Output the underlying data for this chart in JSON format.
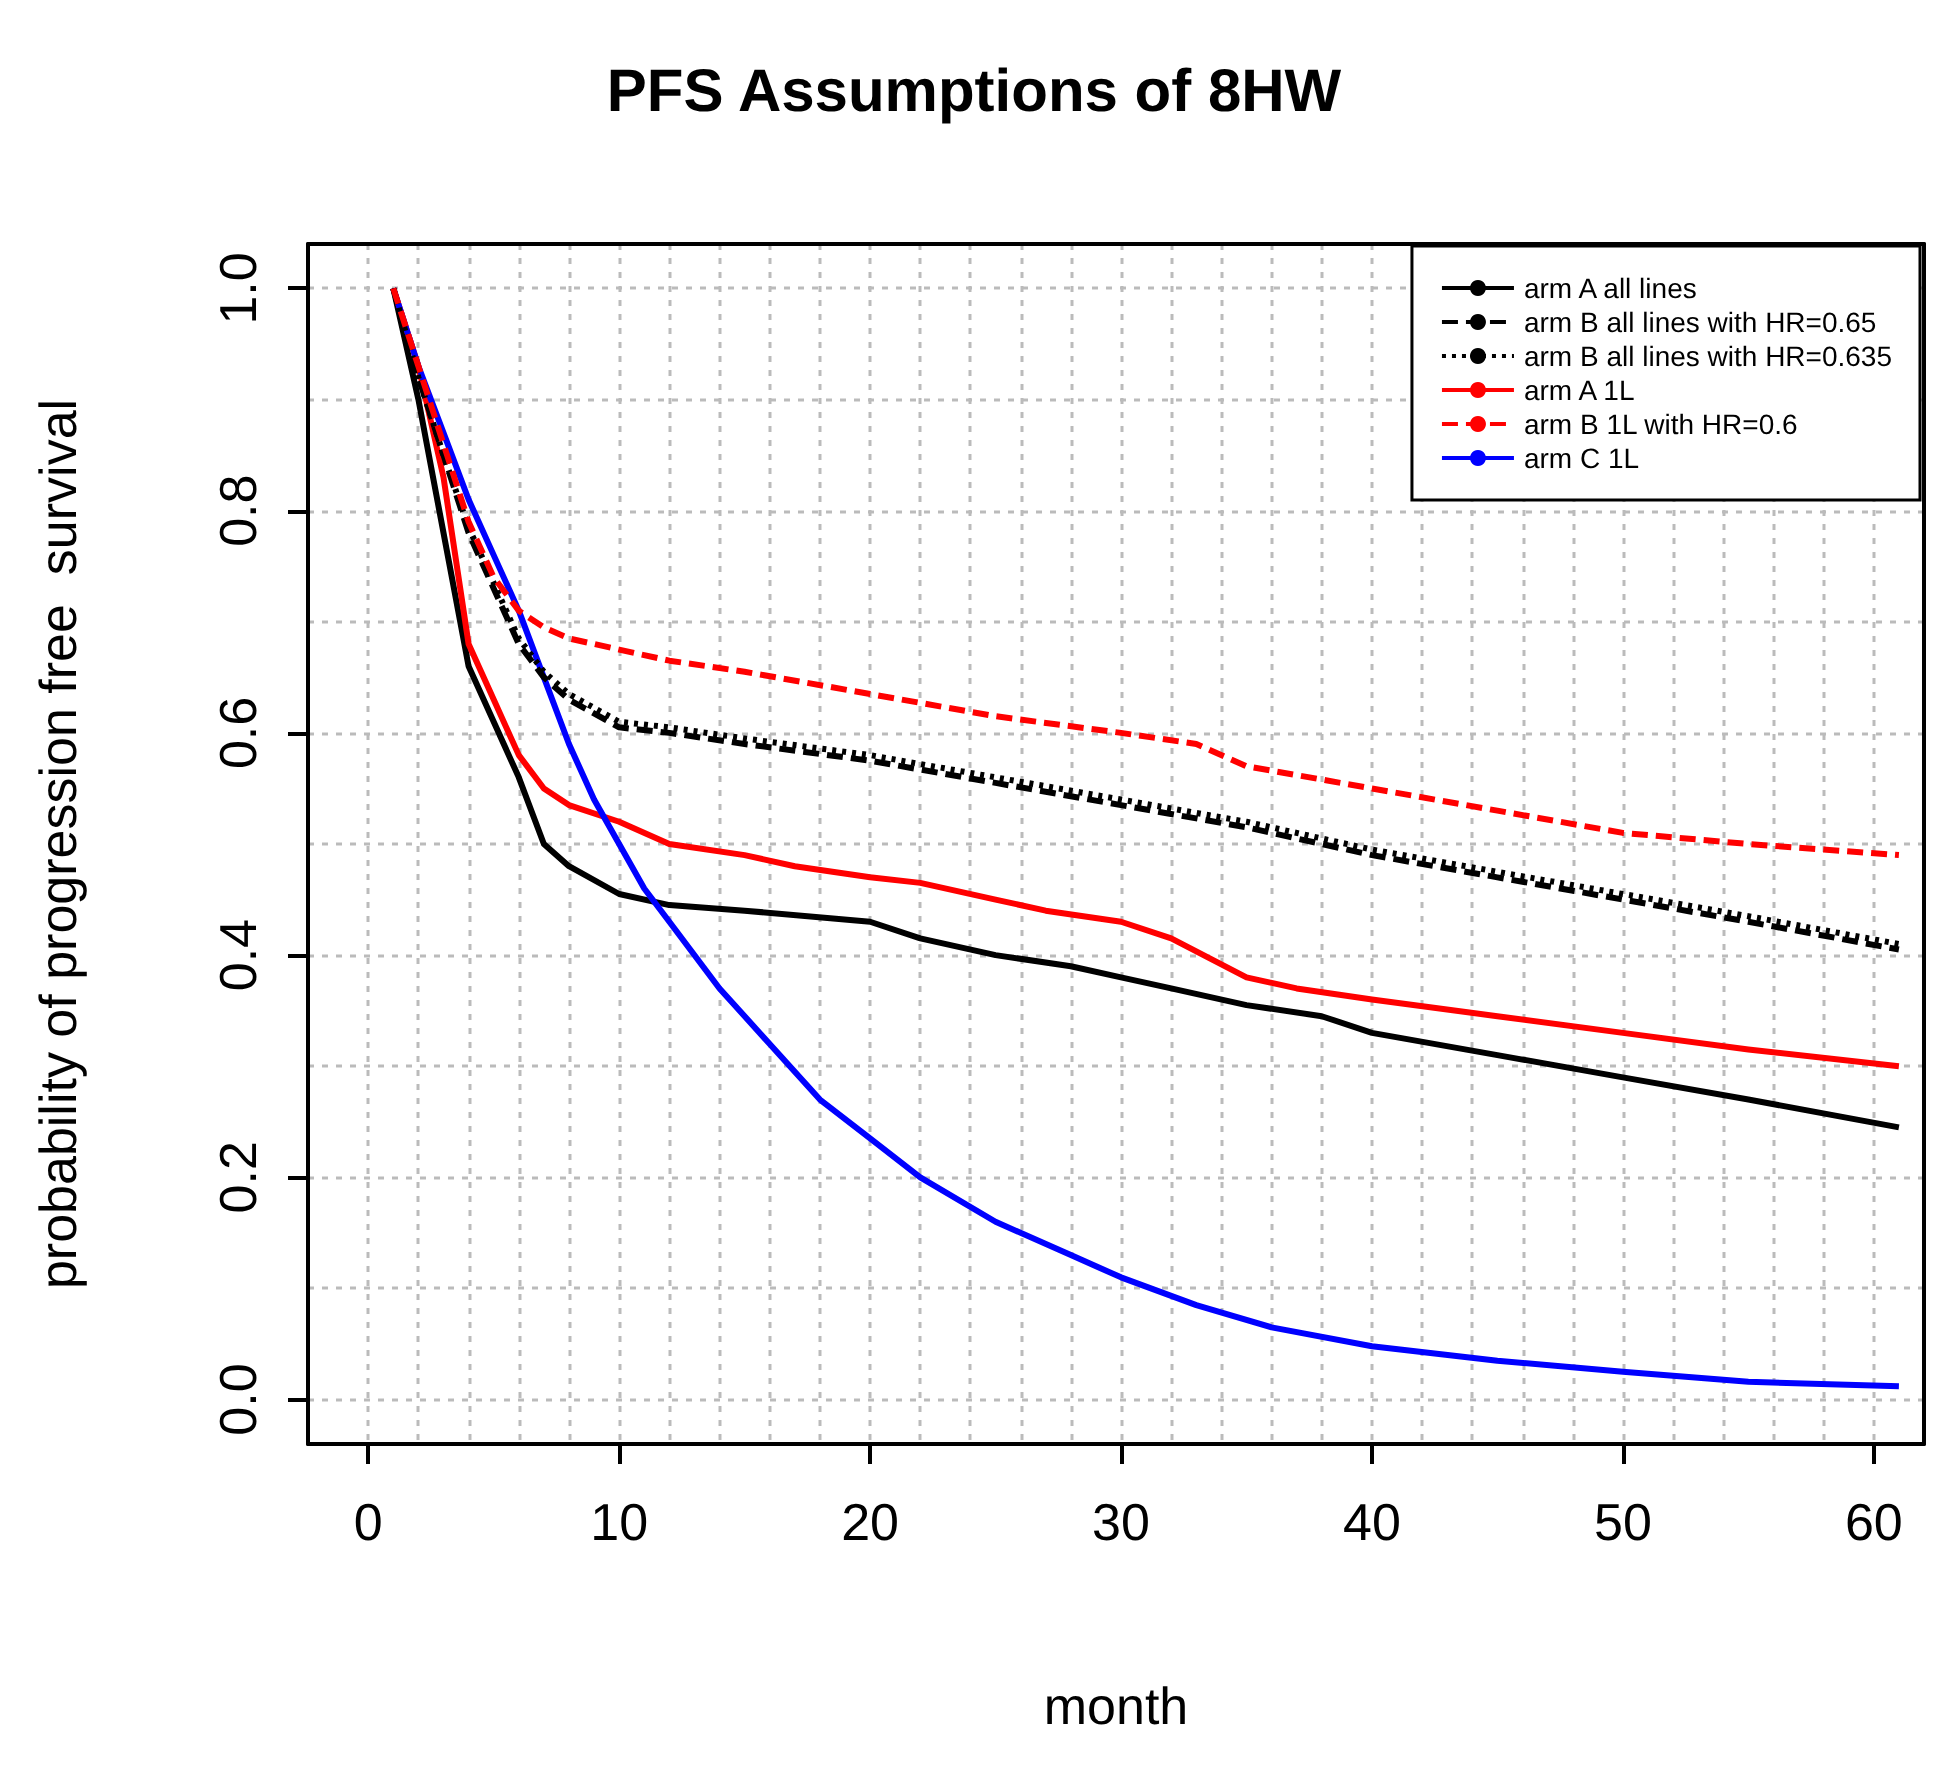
{
  "chart_data": {
    "type": "line",
    "title": "PFS Assumptions of 8HW",
    "xlabel": "month",
    "ylabel": "probability of progression free  survival",
    "xlim": [
      -2.4,
      62
    ],
    "ylim": [
      -0.04,
      1.04
    ],
    "xticks": [
      0,
      {
        "value": 2,
        "label": null
      },
      {
        "value": 4,
        "label": null
      },
      {
        "value": 6,
        "label": null
      },
      {
        "value": 8,
        "label": null
      },
      10,
      {
        "value": 12,
        "label": null
      },
      {
        "value": 14,
        "label": null
      },
      {
        "value": 16,
        "label": null
      },
      {
        "value": 18,
        "label": null
      },
      20,
      {
        "value": 22,
        "label": null
      },
      {
        "value": 24,
        "label": null
      },
      {
        "value": 26,
        "label": null
      },
      {
        "value": 28,
        "label": null
      },
      30,
      {
        "value": 32,
        "label": null
      },
      {
        "value": 34,
        "label": null
      },
      {
        "value": 36,
        "label": null
      },
      {
        "value": 38,
        "label": null
      },
      40,
      {
        "value": 42,
        "label": null
      },
      {
        "value": 44,
        "label": null
      },
      {
        "value": 46,
        "label": null
      },
      {
        "value": 48,
        "label": null
      },
      50,
      {
        "value": 52,
        "label": null
      },
      {
        "value": 54,
        "label": null
      },
      {
        "value": 56,
        "label": null
      },
      {
        "value": 58,
        "label": null
      },
      60
    ],
    "yticks": [
      {
        "value": 0,
        "label": "0.0"
      },
      {
        "value": 0.1,
        "label": null
      },
      {
        "value": 0.2,
        "label": "0.2"
      },
      {
        "value": 0.3,
        "label": null
      },
      {
        "value": 0.4,
        "label": "0.4"
      },
      {
        "value": 0.5,
        "label": null
      },
      {
        "value": 0.6,
        "label": "0.6"
      },
      {
        "value": 0.7,
        "label": null
      },
      {
        "value": 0.8,
        "label": "0.8"
      },
      {
        "value": 0.9,
        "label": null
      },
      {
        "value": 1,
        "label": "1.0"
      }
    ],
    "grid": true,
    "legend": "top right",
    "marker": "none",
    "series": [
      {
        "name": "arm A all lines",
        "color": "#000000",
        "line_style": "solid",
        "x": [
          1,
          2,
          3,
          4,
          5,
          6,
          7,
          8,
          10,
          12,
          15,
          20,
          22,
          25,
          28,
          30,
          32,
          35,
          38,
          40,
          45,
          50,
          55,
          61
        ],
        "values": [
          1.0,
          0.9,
          0.78,
          0.66,
          0.61,
          0.56,
          0.5,
          0.48,
          0.455,
          0.445,
          0.44,
          0.43,
          0.415,
          0.4,
          0.39,
          0.38,
          0.37,
          0.355,
          0.345,
          0.33,
          0.31,
          0.29,
          0.27,
          0.245
        ]
      },
      {
        "name": "arm B all lines with HR=0.65",
        "color": "#000000",
        "line_style": "dashed",
        "x": [
          1,
          2,
          3,
          4,
          5,
          6,
          7,
          8,
          10,
          12,
          15,
          20,
          25,
          30,
          35,
          40,
          45,
          50,
          55,
          61
        ],
        "values": [
          1.0,
          0.92,
          0.85,
          0.78,
          0.73,
          0.68,
          0.65,
          0.63,
          0.605,
          0.6,
          0.59,
          0.575,
          0.555,
          0.535,
          0.515,
          0.49,
          0.47,
          0.45,
          0.43,
          0.405
        ]
      },
      {
        "name": "arm B all lines with HR=0.635",
        "color": "#000000",
        "line_style": "dotted",
        "x": [
          1,
          2,
          3,
          4,
          5,
          6,
          7,
          8,
          10,
          12,
          15,
          20,
          25,
          30,
          35,
          40,
          45,
          50,
          55,
          61
        ],
        "values": [
          1.0,
          0.92,
          0.85,
          0.785,
          0.735,
          0.685,
          0.655,
          0.635,
          0.61,
          0.605,
          0.595,
          0.58,
          0.56,
          0.54,
          0.52,
          0.495,
          0.475,
          0.455,
          0.435,
          0.41
        ]
      },
      {
        "name": "arm A 1L",
        "color": "#ff0000",
        "line_style": "solid",
        "x": [
          1,
          2,
          3,
          4,
          5,
          6,
          7,
          8,
          10,
          12,
          15,
          17,
          20,
          22,
          25,
          27,
          30,
          32,
          35,
          37,
          40,
          45,
          50,
          55,
          61
        ],
        "values": [
          1.0,
          0.93,
          0.83,
          0.68,
          0.63,
          0.58,
          0.55,
          0.535,
          0.52,
          0.5,
          0.49,
          0.48,
          0.47,
          0.465,
          0.45,
          0.44,
          0.43,
          0.415,
          0.38,
          0.37,
          0.36,
          0.345,
          0.33,
          0.315,
          0.3
        ]
      },
      {
        "name": "arm B 1L with HR=0.6",
        "color": "#ff0000",
        "line_style": "dashed",
        "x": [
          1,
          2,
          3,
          4,
          5,
          6,
          7,
          8,
          10,
          12,
          15,
          20,
          25,
          30,
          33,
          35,
          40,
          45,
          50,
          55,
          61
        ],
        "values": [
          1.0,
          0.93,
          0.86,
          0.79,
          0.74,
          0.71,
          0.695,
          0.685,
          0.675,
          0.665,
          0.655,
          0.635,
          0.615,
          0.6,
          0.59,
          0.57,
          0.55,
          0.53,
          0.51,
          0.5,
          0.49
        ]
      },
      {
        "name": "arm C 1L",
        "color": "#0000ff",
        "line_style": "solid",
        "x": [
          1,
          2,
          3,
          4,
          5,
          6,
          7,
          8,
          9,
          10,
          11,
          12,
          14,
          16,
          18,
          20,
          22,
          25,
          28,
          30,
          33,
          36,
          40,
          45,
          50,
          55,
          61
        ],
        "values": [
          1.0,
          0.93,
          0.87,
          0.81,
          0.76,
          0.71,
          0.65,
          0.59,
          0.54,
          0.5,
          0.46,
          0.43,
          0.37,
          0.32,
          0.27,
          0.235,
          0.2,
          0.16,
          0.13,
          0.11,
          0.085,
          0.065,
          0.048,
          0.035,
          0.025,
          0.016,
          0.012
        ]
      }
    ]
  }
}
